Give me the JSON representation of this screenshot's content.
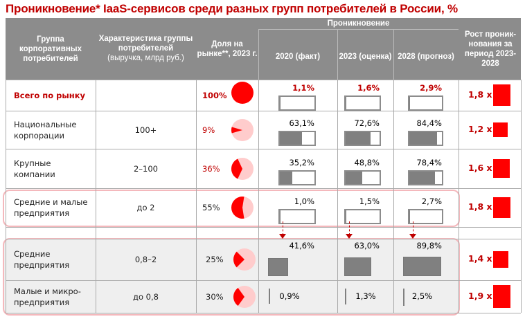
{
  "title": "Проникновение* IaaS-сервисов среди разных групп потребителей в России, %",
  "header": {
    "group": "Группа корпоративных потребителей",
    "characteristic": "Характеристика группы потребителей",
    "characteristic_unit": "(выручка, млрд руб.)",
    "share": "Доля на рынке**, 2023 г.",
    "penetration": "Проникновение",
    "y2020": "2020 (факт)",
    "y2023": "2023 (оценка)",
    "y2028": "2028 (прогноз)",
    "growth": "Рост проник-нования за период 2023-2028"
  },
  "colors": {
    "accent": "#c00000",
    "bar": "#808080",
    "growth": "#ff0000",
    "pie_light": "#ffcccc",
    "header": "#8c8c8c"
  },
  "chart_data": {
    "type": "table",
    "rows": [
      {
        "group": "Всего по рынку",
        "char": "",
        "share": "100%",
        "share_value": 100,
        "p2020": "1,1%",
        "p2023": "1,6%",
        "p2028": "2,9%",
        "v": [
          1.1,
          1.6,
          2.9
        ],
        "growth": "1,8 x",
        "growth_value": 1.8,
        "total": true
      },
      {
        "group": "Национальные корпорации",
        "char": "100+",
        "share": "9%",
        "share_value": 9,
        "p2020": "63,1%",
        "p2023": "72,6%",
        "p2028": "84,4%",
        "v": [
          63.1,
          72.6,
          84.4
        ],
        "growth": "1,2 x",
        "growth_value": 1.2
      },
      {
        "group": "Крупные компании",
        "char": "2–100",
        "share": "36%",
        "share_value": 36,
        "p2020": "35,2%",
        "p2023": "48,8%",
        "p2028": "78,4%",
        "v": [
          35.2,
          48.8,
          78.4
        ],
        "growth": "1,6 x",
        "growth_value": 1.6
      },
      {
        "group": "Средние и малые предприятия",
        "char": "до 2",
        "share": "55%",
        "share_value": 55,
        "p2020": "1,0%",
        "p2023": "1,5%",
        "p2028": "2,7%",
        "v": [
          1.0,
          1.5,
          2.7
        ],
        "growth": "1,8 x",
        "growth_value": 1.8
      },
      {
        "group": "Средние предприятия",
        "char": "0,8–2",
        "share": "25%",
        "share_value": 25,
        "p2020": "41,6%",
        "p2023": "63,0%",
        "p2028": "89,8%",
        "v": [
          41.6,
          63.0,
          89.8
        ],
        "growth": "1,4 x",
        "growth_value": 1.4,
        "sub": true
      },
      {
        "group": "Малые и микро-предприятия",
        "char": "до 0,8",
        "share": "30%",
        "share_value": 30,
        "p2020": "0,9%",
        "p2023": "1,3%",
        "p2028": "2,5%",
        "v": [
          0.9,
          1.3,
          2.5
        ],
        "growth": "1,9 x",
        "growth_value": 1.9,
        "sub": true
      }
    ]
  }
}
